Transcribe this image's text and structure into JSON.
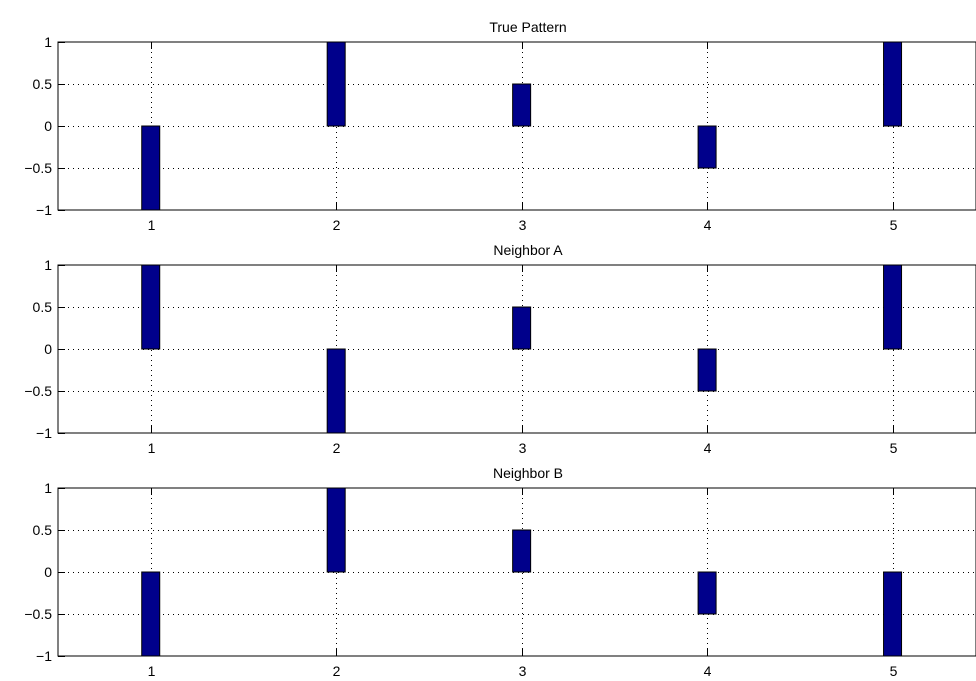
{
  "chart_data": [
    {
      "type": "bar",
      "title": "True Pattern",
      "xlabel": "",
      "ylabel": "",
      "categories": [
        "1",
        "2",
        "3",
        "4",
        "5"
      ],
      "values": [
        -1,
        1,
        0.5,
        -0.5,
        1
      ],
      "ylim": [
        -1,
        1
      ],
      "yticks": [
        "1",
        "0.5",
        "0",
        "−0.5",
        "−1"
      ],
      "grid": true,
      "legend": "none"
    },
    {
      "type": "bar",
      "title": "Neighbor A",
      "xlabel": "",
      "ylabel": "",
      "categories": [
        "1",
        "2",
        "3",
        "4",
        "5"
      ],
      "values": [
        1,
        -1,
        0.5,
        -0.5,
        1
      ],
      "ylim": [
        -1,
        1
      ],
      "yticks": [
        "1",
        "0.5",
        "0",
        "−0.5",
        "−1"
      ],
      "grid": true,
      "legend": "none"
    },
    {
      "type": "bar",
      "title": "Neighbor B",
      "xlabel": "",
      "ylabel": "",
      "categories": [
        "1",
        "2",
        "3",
        "4",
        "5"
      ],
      "values": [
        -1,
        1,
        0.5,
        -0.5,
        -1
      ],
      "ylim": [
        -1,
        1
      ],
      "yticks": [
        "1",
        "0.5",
        "0",
        "−0.5",
        "−1"
      ],
      "grid": true,
      "legend": "none"
    }
  ],
  "colors": {
    "bar": "#00008b",
    "bar_edge": "#000000",
    "grid": "#000000",
    "axis": "#000000"
  }
}
